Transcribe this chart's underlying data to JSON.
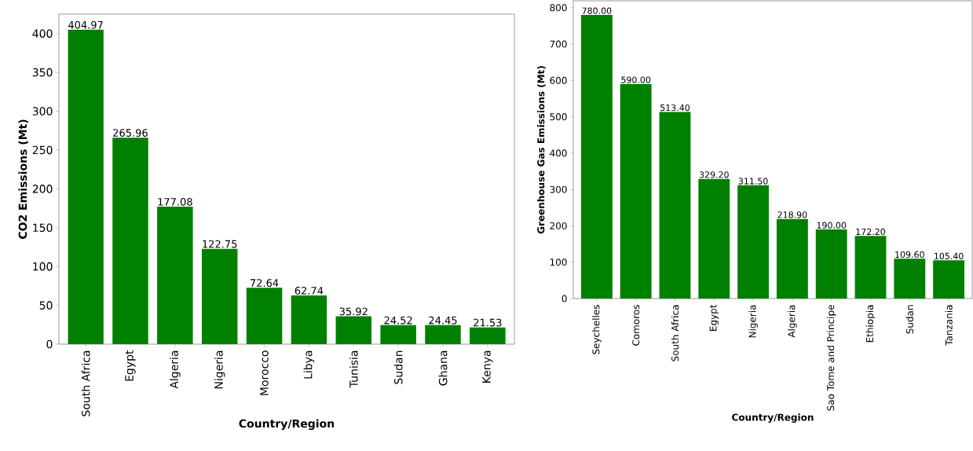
{
  "chart_data": [
    {
      "type": "bar",
      "xlabel": "Country/Region",
      "ylabel": "CO2 Emissions (Mt)",
      "color": "#008000",
      "categories": [
        "South Africa",
        "Egypt",
        "Algeria",
        "Nigeria",
        "Morocco",
        "Libya",
        "Tunisia",
        "Sudan",
        "Ghana",
        "Kenya"
      ],
      "values": [
        404.97,
        265.96,
        177.08,
        122.75,
        72.64,
        62.74,
        35.92,
        24.52,
        24.45,
        21.53
      ],
      "value_labels": [
        "404.97",
        "265.96",
        "177.08",
        "122.75",
        "72.64",
        "62.74",
        "35.92",
        "24.52",
        "24.45",
        "21.53"
      ],
      "ylim": [
        0,
        425
      ],
      "yticks": [
        0,
        50,
        100,
        150,
        200,
        250,
        300,
        350,
        400
      ]
    },
    {
      "type": "bar",
      "xlabel": "Country/Region",
      "ylabel": "Greenhouse Gas Emissions (Mt)",
      "color": "#008000",
      "categories": [
        "Seychelles",
        "Comoros",
        "South Africa",
        "Egypt",
        "Nigeria",
        "Algeria",
        "Sao Tome and Principe",
        "Ethiopia",
        "Sudan",
        "Tanzania"
      ],
      "values": [
        780.0,
        590.0,
        513.4,
        329.2,
        311.5,
        218.9,
        190.0,
        172.2,
        109.6,
        105.4
      ],
      "value_labels": [
        "780.00",
        "590.00",
        "513.40",
        "329.20",
        "311.50",
        "218.90",
        "190.00",
        "172.20",
        "109.60",
        "105.40"
      ],
      "ylim": [
        0,
        819
      ],
      "yticks": [
        0,
        100,
        200,
        300,
        400,
        500,
        600,
        700,
        800
      ]
    }
  ]
}
